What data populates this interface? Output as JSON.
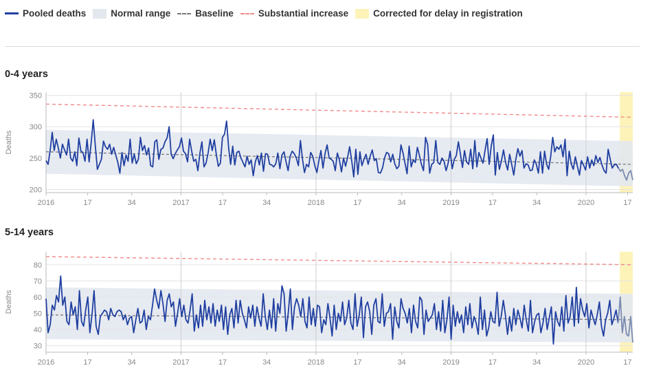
{
  "legend": {
    "pooled": "Pooled deaths",
    "normal": "Normal range",
    "baseline": "Baseline",
    "substantial": "Substantial increase",
    "corrected": "Corrected for delay in registration"
  },
  "colors": {
    "pooled": "#1f3fa0",
    "normal_band": "#e3e8ef",
    "baseline": "#777777",
    "substantial": "#f08a8a",
    "corrected": "#fdf3b8",
    "grid": "#e3e3e3"
  },
  "chart_data": [
    {
      "type": "line",
      "title": "0-4 years",
      "ylabel": "Deaths",
      "ylim": [
        195,
        355
      ],
      "yticks": [
        200,
        250,
        300,
        350
      ],
      "xticks": [
        {
          "week": 1,
          "label": "2016"
        },
        {
          "week": 17,
          "label": "17"
        },
        {
          "week": 34,
          "label": "34"
        },
        {
          "week": 53,
          "label": "2017"
        },
        {
          "week": 69,
          "label": "17"
        },
        {
          "week": 86,
          "label": "34"
        },
        {
          "week": 105,
          "label": "2018"
        },
        {
          "week": 121,
          "label": "17"
        },
        {
          "week": 138,
          "label": "34"
        },
        {
          "week": 157,
          "label": "2019"
        },
        {
          "week": 173,
          "label": "17"
        },
        {
          "week": 190,
          "label": "34"
        },
        {
          "week": 209,
          "label": "2020"
        },
        {
          "week": 225,
          "label": "17"
        }
      ],
      "xlim": [
        1,
        227
      ],
      "corrected_from_week": 222,
      "baseline": {
        "start": 260,
        "end": 240
      },
      "normal_range": {
        "lower_start": 225,
        "lower_end": 205,
        "upper_start": 295,
        "upper_end": 277
      },
      "substantial": {
        "start": 336,
        "end": 315
      },
      "series": [
        {
          "name": "Pooled deaths",
          "values": [
            246,
            240,
            262,
            291,
            262,
            280,
            266,
            250,
            272,
            263,
            255,
            280,
            250,
            245,
            260,
            238,
            282,
            261,
            259,
            245,
            280,
            244,
            274,
            311,
            270,
            232,
            240,
            248,
            277,
            268,
            264,
            272,
            256,
            267,
            255,
            243,
            226,
            259,
            238,
            255,
            245,
            280,
            242,
            256,
            241,
            248,
            283,
            262,
            270,
            255,
            266,
            238,
            236,
            276,
            279,
            248,
            264,
            266,
            276,
            282,
            300,
            256,
            249,
            257,
            263,
            268,
            282,
            261,
            257,
            244,
            280,
            261,
            245,
            248,
            230,
            258,
            276,
            236,
            242,
            258,
            280,
            262,
            279,
            256,
            237,
            242,
            283,
            288,
            309,
            266,
            240,
            269,
            239,
            259,
            261,
            250,
            243,
            236,
            253,
            240,
            247,
            222,
            244,
            254,
            239,
            258,
            229,
            257,
            256,
            240,
            239,
            236,
            241,
            258,
            233,
            255,
            260,
            244,
            230,
            253,
            261,
            257,
            250,
            238,
            278,
            248,
            227,
            240,
            236,
            259,
            253,
            238,
            227,
            246,
            262,
            234,
            257,
            271,
            250,
            248,
            245,
            230,
            258,
            247,
            228,
            250,
            237,
            251,
            268,
            246,
            220,
            264,
            224,
            260,
            238,
            248,
            256,
            240,
            253,
            263,
            246,
            249,
            227,
            226,
            234,
            250,
            259,
            257,
            244,
            256,
            241,
            233,
            237,
            271,
            258,
            241,
            225,
            269,
            236,
            247,
            243,
            267,
            254,
            240,
            230,
            283,
            272,
            226,
            240,
            243,
            278,
            243,
            240,
            250,
            245,
            230,
            242,
            261,
            233,
            248,
            254,
            276,
            256,
            235,
            262,
            244,
            240,
            264,
            233,
            278,
            236,
            259,
            250,
            242,
            262,
            281,
            240,
            269,
            287,
            223,
            259,
            232,
            246,
            263,
            243,
            231,
            256,
            240,
            223,
            248,
            265,
            253,
            262,
            234,
            241,
            239,
            230,
            231,
            247,
            240,
            226,
            260,
            226,
            261,
            240,
            232,
            253,
            283,
            260,
            268,
            264,
            271,
            252,
            280,
            222,
            261,
            241,
            232,
            252,
            237,
            223,
            246,
            239,
            231,
            252,
            234,
            247,
            238,
            254,
            243,
            251,
            239,
            230,
            226,
            264,
            248,
            234,
            239,
            240,
            234,
            229,
            232,
            222,
            215,
            226,
            230,
            215
          ]
        }
      ]
    },
    {
      "type": "line",
      "title": "5-14 years",
      "ylabel": "Deaths",
      "ylim": [
        26,
        88
      ],
      "yticks": [
        30,
        40,
        50,
        60,
        70,
        80
      ],
      "xticks": [
        {
          "week": 1,
          "label": "2016"
        },
        {
          "week": 17,
          "label": "17"
        },
        {
          "week": 34,
          "label": "34"
        },
        {
          "week": 53,
          "label": "2017"
        },
        {
          "week": 69,
          "label": "17"
        },
        {
          "week": 86,
          "label": "34"
        },
        {
          "week": 105,
          "label": "2018"
        },
        {
          "week": 121,
          "label": "17"
        },
        {
          "week": 138,
          "label": "34"
        },
        {
          "week": 157,
          "label": "2019"
        },
        {
          "week": 173,
          "label": "17"
        },
        {
          "week": 190,
          "label": "34"
        },
        {
          "week": 209,
          "label": "2020"
        },
        {
          "week": 225,
          "label": "17"
        }
      ],
      "xlim": [
        1,
        227
      ],
      "corrected_from_week": 222,
      "baseline": {
        "start": 49,
        "end": 46
      },
      "normal_range": {
        "lower_start": 34,
        "lower_end": 32,
        "upper_start": 66,
        "upper_end": 62
      },
      "substantial": {
        "start": 85,
        "end": 80
      },
      "series": [
        {
          "name": "Pooled deaths",
          "values": [
            59,
            38,
            43,
            55,
            52,
            61,
            57,
            73,
            55,
            60,
            45,
            43,
            57,
            49,
            54,
            40,
            64,
            45,
            42,
            52,
            60,
            38,
            49,
            64,
            42,
            37,
            48,
            50,
            52,
            51,
            46,
            53,
            49,
            48,
            51,
            52,
            51,
            46,
            49,
            43,
            47,
            48,
            38,
            46,
            53,
            44,
            45,
            52,
            40,
            48,
            46,
            55,
            65,
            58,
            53,
            64,
            56,
            45,
            58,
            62,
            54,
            57,
            42,
            50,
            59,
            48,
            55,
            46,
            44,
            52,
            62,
            39,
            49,
            41,
            55,
            42,
            58,
            46,
            54,
            44,
            56,
            42,
            52,
            45,
            55,
            40,
            54,
            37,
            49,
            53,
            41,
            58,
            44,
            58,
            50,
            46,
            41,
            54,
            47,
            55,
            42,
            54,
            47,
            42,
            62,
            48,
            40,
            52,
            41,
            59,
            39,
            56,
            50,
            67,
            62,
            39,
            50,
            65,
            40,
            54,
            59,
            55,
            48,
            59,
            45,
            41,
            60,
            43,
            53,
            42,
            55,
            54,
            38,
            46,
            43,
            56,
            47,
            36,
            55,
            40,
            50,
            45,
            57,
            43,
            47,
            58,
            44,
            40,
            62,
            42,
            49,
            60,
            35,
            54,
            57,
            51,
            37,
            55,
            59,
            45,
            44,
            62,
            42,
            50,
            51,
            56,
            34,
            54,
            45,
            41,
            59,
            53,
            50,
            44,
            53,
            38,
            55,
            45,
            41,
            60,
            58,
            37,
            52,
            45,
            47,
            49,
            56,
            40,
            51,
            39,
            58,
            38,
            46,
            60,
            34,
            55,
            42,
            51,
            44,
            49,
            38,
            54,
            43,
            56,
            41,
            48,
            44,
            37,
            60,
            40,
            52,
            36,
            41,
            51,
            45,
            44,
            63,
            42,
            48,
            58,
            49,
            37,
            48,
            39,
            53,
            43,
            52,
            47,
            41,
            55,
            46,
            39,
            58,
            38,
            45,
            49,
            50,
            38,
            44,
            53,
            40,
            47,
            54,
            31,
            51,
            45,
            42,
            54,
            39,
            61,
            44,
            48,
            60,
            42,
            66,
            44,
            59,
            52,
            48,
            56,
            41,
            52,
            47,
            43,
            49,
            57,
            42,
            36,
            46,
            50,
            58,
            43,
            47,
            52,
            44,
            60,
            38,
            48,
            37,
            36,
            48,
            32
          ]
        }
      ]
    }
  ]
}
